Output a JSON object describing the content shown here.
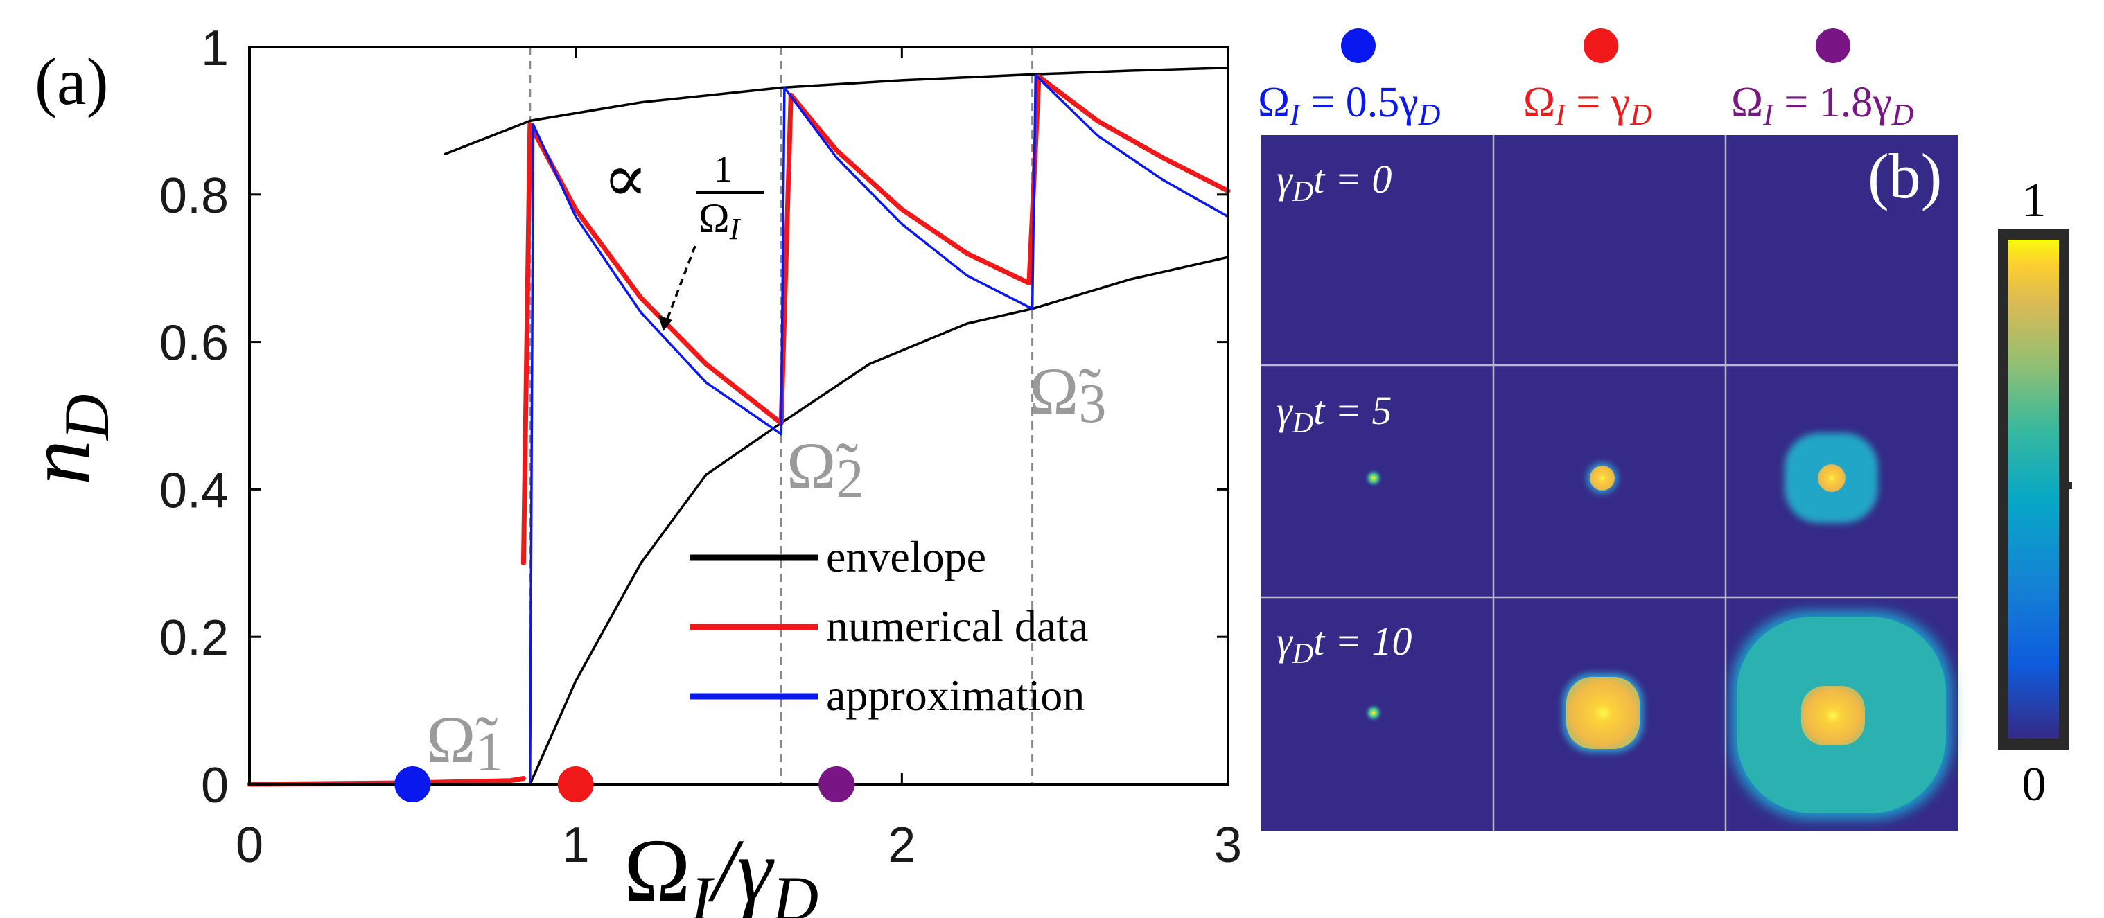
{
  "panel_a": {
    "label": "(a)",
    "ylabel_main": "n",
    "ylabel_sub": "D",
    "xlabel": "Ω",
    "xlabel_sub1": "I",
    "xlabel_slash": "/γ",
    "xlabel_sub2": "D",
    "annotation_prop": "∝",
    "annotation_num": "1",
    "annotation_den": "Ω",
    "annotation_den_sub": "I",
    "omega_labels": [
      {
        "base": "Ω̃",
        "sub": "1"
      },
      {
        "base": "Ω̃",
        "sub": "2"
      },
      {
        "base": "Ω̃",
        "sub": "3"
      }
    ],
    "legend": [
      "envelope",
      "numerical data",
      "approximation"
    ]
  },
  "panel_b": {
    "label": "(b)",
    "columns": [
      {
        "lhs": "Ω",
        "lhs_sub": "I",
        "rhs": " = 0.5γ",
        "rhs_sub": "D",
        "color": "#0a18f0"
      },
      {
        "lhs": "Ω",
        "lhs_sub": "I",
        "rhs": " = γ",
        "rhs_sub": "D",
        "color": "#f01818"
      },
      {
        "lhs": "Ω",
        "lhs_sub": "I",
        "rhs": " = 1.8γ",
        "rhs_sub": "D",
        "color": "#7a1585"
      }
    ],
    "rows": [
      {
        "pre": "γ",
        "sub": "D",
        "post": "t = 0"
      },
      {
        "pre": "γ",
        "sub": "D",
        "post": "t = 5"
      },
      {
        "pre": "γ",
        "sub": "D",
        "post": "t = 10"
      }
    ],
    "colorbar_max": "1",
    "colorbar_min": "0"
  },
  "chart_data": [
    {
      "type": "line",
      "xlabel": "Ω_I/γ_D",
      "ylabel": "n_D",
      "xlim": [
        0,
        3
      ],
      "ylim": [
        0,
        1
      ],
      "xticks": [
        0,
        1,
        2,
        3
      ],
      "xtick_labels": [
        "0",
        "1",
        "2",
        "3"
      ],
      "yticks": [
        0,
        0.2,
        0.4,
        0.6,
        0.8,
        1
      ],
      "ytick_labels": [
        "0",
        "0.2",
        "0.4",
        "0.6",
        "0.8",
        "1"
      ],
      "thresholds": [
        0.86,
        1.63,
        2.4
      ],
      "legend_position": "bottom-right",
      "markers": [
        {
          "x": 0.5,
          "y": 0,
          "color": "#0a18f0"
        },
        {
          "x": 1.0,
          "y": 0,
          "color": "#f01818"
        },
        {
          "x": 1.8,
          "y": 0,
          "color": "#7a1585"
        }
      ],
      "series": [
        {
          "name": "envelope",
          "color": "#000000",
          "segments": [
            {
              "x": [
                0.6,
                0.86,
                1.2,
                1.63,
                2.0,
                2.4,
                2.7,
                3.0
              ],
              "y": [
                0.855,
                0.9,
                0.925,
                0.945,
                0.955,
                0.963,
                0.968,
                0.972
              ]
            },
            {
              "x": [
                0.86,
                1.0,
                1.2,
                1.4,
                1.63,
                1.9,
                2.2,
                2.4,
                2.7,
                3.0
              ],
              "y": [
                0.0,
                0.14,
                0.3,
                0.42,
                0.49,
                0.57,
                0.625,
                0.645,
                0.685,
                0.715
              ]
            }
          ]
        },
        {
          "name": "numerical data",
          "color": "#f01818",
          "segments": [
            {
              "x": [
                0,
                0.5,
                0.8,
                0.84
              ],
              "y": [
                0.0,
                0.002,
                0.005,
                0.008
              ]
            },
            {
              "x": [
                0.84,
                0.86,
                1.0,
                1.2,
                1.4,
                1.63
              ],
              "y": [
                0.3,
                0.895,
                0.78,
                0.66,
                0.57,
                0.49
              ]
            },
            {
              "x": [
                1.63,
                1.66,
                1.8,
                2.0,
                2.2,
                2.39
              ],
              "y": [
                0.49,
                0.935,
                0.86,
                0.78,
                0.72,
                0.68
              ]
            },
            {
              "x": [
                2.39,
                2.42,
                2.6,
                2.8,
                3.0
              ],
              "y": [
                0.68,
                0.96,
                0.9,
                0.85,
                0.805
              ]
            }
          ]
        },
        {
          "name": "approximation",
          "color": "#0a18f0",
          "segments": [
            {
              "x": [
                0,
                0.5,
                0.86
              ],
              "y": [
                0.0,
                0.0,
                0.0
              ]
            },
            {
              "x": [
                0.86,
                0.87,
                1.0,
                1.2,
                1.4,
                1.63
              ],
              "y": [
                0.0,
                0.895,
                0.77,
                0.64,
                0.545,
                0.475
              ]
            },
            {
              "x": [
                1.63,
                1.64,
                1.8,
                2.0,
                2.2,
                2.4
              ],
              "y": [
                0.475,
                0.945,
                0.85,
                0.76,
                0.69,
                0.645
              ]
            },
            {
              "x": [
                2.4,
                2.41,
                2.6,
                2.8,
                3.0
              ],
              "y": [
                0.645,
                0.962,
                0.88,
                0.82,
                0.77
              ]
            }
          ]
        }
      ]
    },
    {
      "type": "heatmap",
      "grid_rows": 3,
      "grid_cols": 3,
      "colorbar_range": [
        0,
        1
      ],
      "background": "#352a87",
      "blobs": [
        {
          "row": 1,
          "col": 0,
          "kind": "dot"
        },
        {
          "row": 1,
          "col": 1,
          "kind": "core",
          "core_radius": 0.11
        },
        {
          "row": 1,
          "col": 2,
          "kind": "plateau",
          "outer_radius": 0.4,
          "core_radius": 0.11
        },
        {
          "row": 2,
          "col": 0,
          "kind": "dot"
        },
        {
          "row": 2,
          "col": 1,
          "kind": "core",
          "core_radius": 0.34
        },
        {
          "row": 2,
          "col": 2,
          "kind": "plateau",
          "outer_radius": 0.98,
          "core_radius": 0.2
        }
      ]
    }
  ]
}
